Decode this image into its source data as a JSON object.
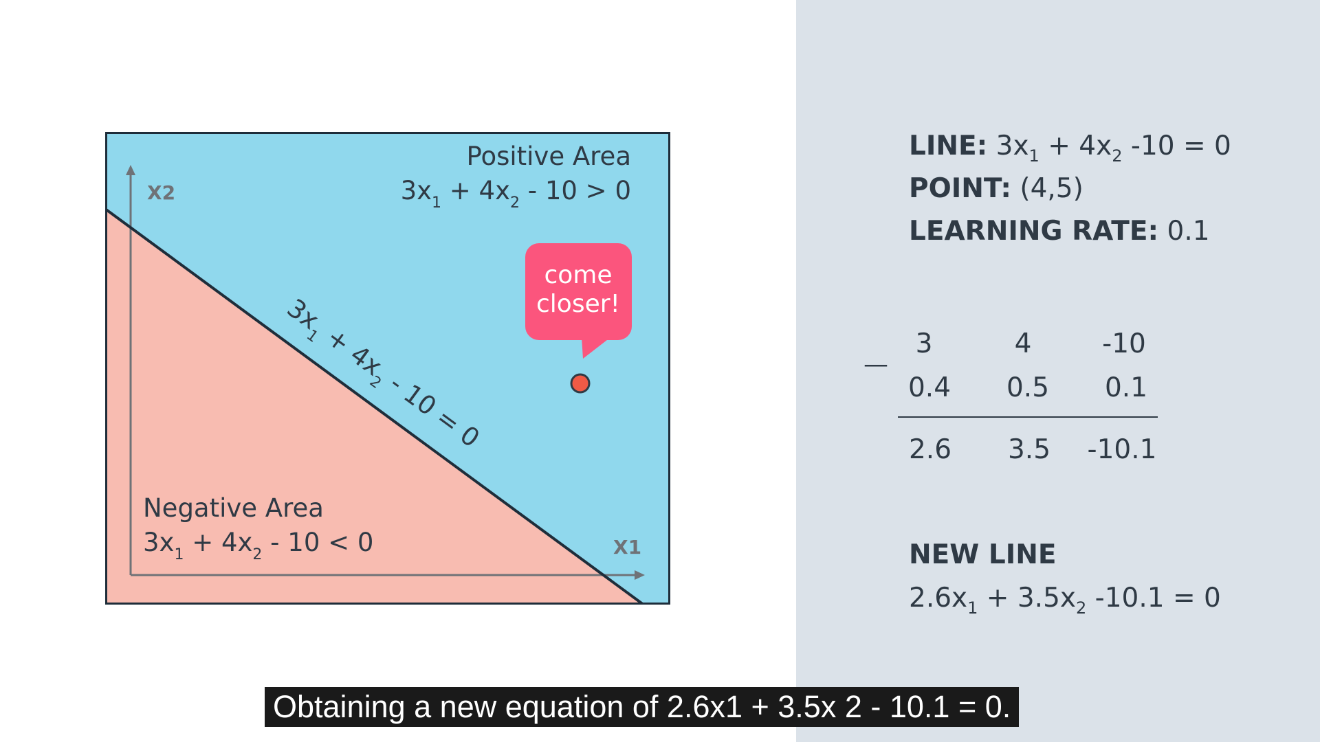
{
  "diagram": {
    "x_axis_label": "X1",
    "y_axis_label": "X2",
    "positive_area": {
      "title": "Positive Area",
      "eq": {
        "a": "3x",
        "s1": "1",
        "b": " + 4x",
        "s2": "2",
        "c": " - 10 > 0"
      }
    },
    "negative_area": {
      "title": "Negative Area",
      "eq": {
        "a": "3x",
        "s1": "1",
        "b": " + 4x",
        "s2": "2",
        "c": " - 10 < 0"
      }
    },
    "line_label": {
      "a": "3x",
      "s1": "1",
      "b": " + 4x",
      "s2": "2",
      "c": " - 10 = 0"
    },
    "speech_bubble": {
      "line1": "come",
      "line2": "closer!"
    },
    "colors": {
      "positive": "#90d8ed",
      "negative": "#f8bcb1",
      "bubble": "#fb557d",
      "point": "#f05a46",
      "line": "#1e2d3a"
    }
  },
  "info": {
    "line": {
      "label": "LINE:",
      "a": " 3x",
      "s1": "1",
      "b": " + 4x",
      "s2": "2",
      "c": " -10 = 0"
    },
    "point": {
      "label": "POINT:",
      "value": " (4,5)"
    },
    "learning_rate": {
      "label": "LEARNING RATE:",
      "value": " 0.1"
    }
  },
  "computation": {
    "operator": "—",
    "row1": [
      "3",
      "4",
      "-10"
    ],
    "row2": [
      "0.4",
      "0.5",
      "0.1"
    ],
    "result": [
      "2.6",
      "3.5",
      "-10.1"
    ]
  },
  "new_line": {
    "title": "NEW LINE",
    "eq": {
      "a": "2.6x",
      "s1": "1",
      "b": " + 3.5x",
      "s2": "2",
      "c": " -10.1 = 0"
    }
  },
  "caption": "Obtaining a new equation of 2.6x1 + 3.5x 2 - 10.1 = 0."
}
